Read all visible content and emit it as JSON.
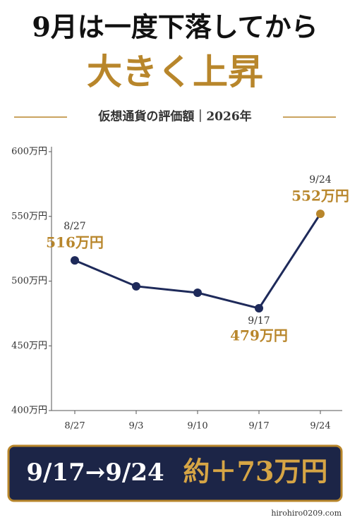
{
  "chart_data": {
    "type": "line",
    "title": "9月は一度下落してから",
    "subtitle": "大きく上昇",
    "chart_label": "仮想通貨の評価額｜2026年",
    "categories": [
      "8/27",
      "9/3",
      "9/10",
      "9/17",
      "9/24"
    ],
    "values": [
      516,
      496,
      491,
      479,
      552
    ],
    "value_labels": [
      "516万円",
      null,
      null,
      "479万円",
      "552万円"
    ],
    "color": "#1e2a5a",
    "highlight_color": "#b8862b",
    "ylim": [
      400,
      600
    ],
    "yticks": [
      {
        "value": 400,
        "label": "400万円"
      },
      {
        "value": 450,
        "label": "450万円"
      },
      {
        "value": 500,
        "label": "500万円"
      },
      {
        "value": 550,
        "label": "550万円"
      },
      {
        "value": 600,
        "label": "600万円"
      }
    ],
    "grid": false,
    "banner_period": "9/17→9/24",
    "banner_change": "約＋73万円",
    "source": "hirohiro0209.com"
  }
}
